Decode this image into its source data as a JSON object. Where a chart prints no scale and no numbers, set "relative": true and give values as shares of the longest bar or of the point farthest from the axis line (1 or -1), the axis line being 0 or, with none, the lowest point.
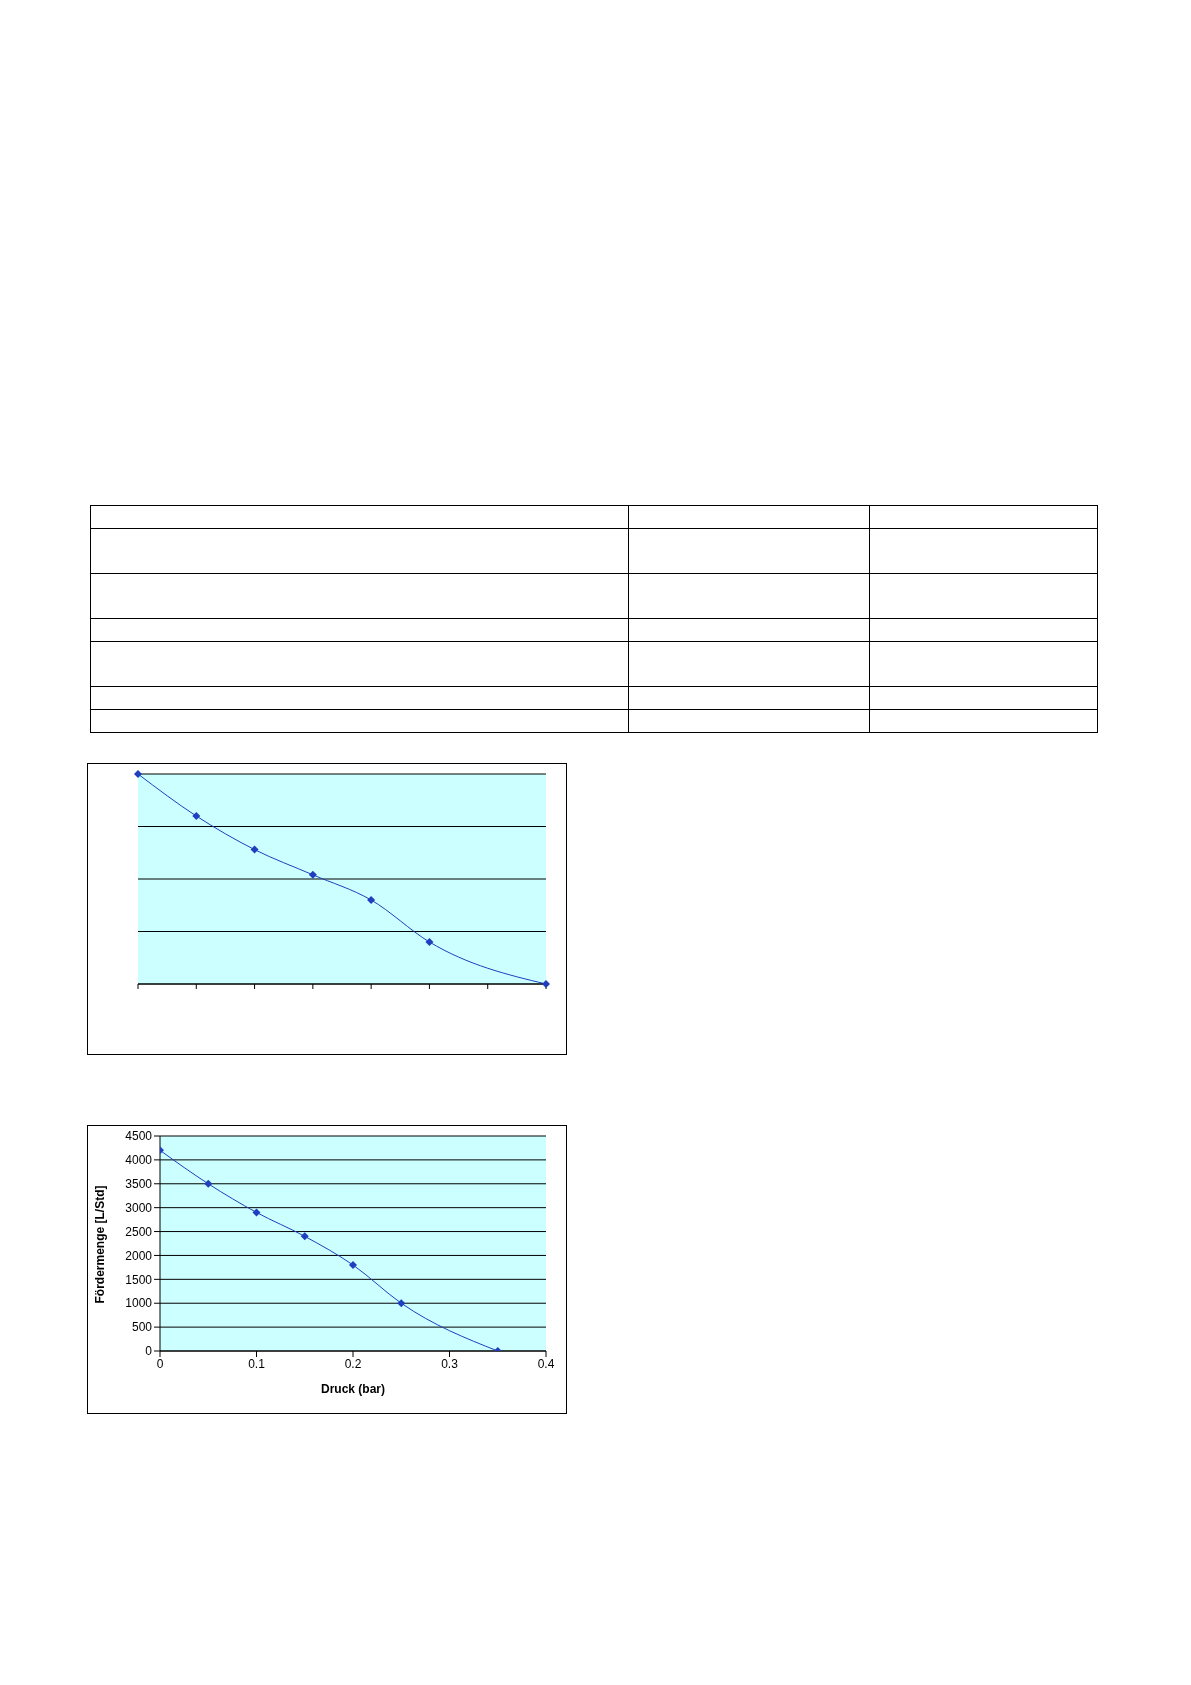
{
  "chart_data": [
    {
      "type": "line",
      "relative": true,
      "categories": [
        null,
        null,
        null,
        null,
        null,
        null,
        null,
        null
      ],
      "series": [
        {
          "color": "#1f3fbf",
          "values": [
            1,
            0.8,
            0.64,
            0.52,
            0.4,
            0.2,
            null,
            0
          ]
        }
      ],
      "grid": "y",
      "marker": "diamond",
      "line_style": "solid"
    },
    {
      "type": "line",
      "xlabel": "Druck (bar)",
      "ylabel": "Fördermenge [L/Std]",
      "x": [
        0,
        0.05,
        0.1,
        0.15,
        0.2,
        0.25,
        0.35
      ],
      "series": [
        {
          "color": "#1f3fbf",
          "values": [
            4200,
            3500,
            2900,
            2400,
            1800,
            1000,
            0
          ]
        }
      ],
      "xlim": [
        0,
        0.4
      ],
      "xticks": [
        0,
        0.1,
        0.2,
        0.3,
        0.4
      ],
      "ylim": [
        0,
        4500
      ],
      "yticks": [
        0,
        500,
        1000,
        1500,
        2000,
        2500,
        3000,
        3500,
        4000,
        4500
      ],
      "grid": "y",
      "marker": "diamond",
      "line_style": "solid"
    }
  ]
}
